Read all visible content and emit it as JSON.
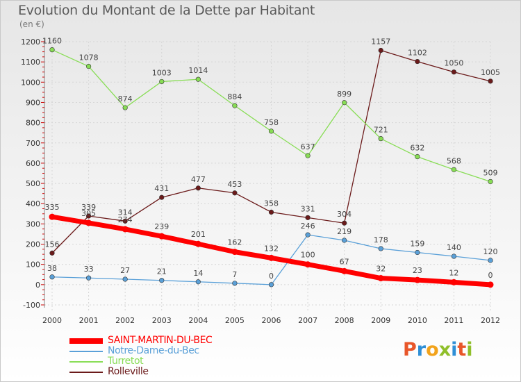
{
  "title": "Evolution du Montant de la Dette par Habitant",
  "subtitle": "(en €)",
  "logo": {
    "letters": [
      "P",
      "r",
      "o",
      "x",
      "i",
      "t",
      "i"
    ],
    "colors": [
      "#e8562a",
      "#2f8fd6",
      "#f2a31b",
      "#8fbf2a",
      "#2f8fd6",
      "#e8562a",
      "#8fbf2a"
    ]
  },
  "chart_data": {
    "type": "line",
    "title": "Evolution du Montant de la Dette par Habitant",
    "ylabel": "(en €)",
    "xlabel": "",
    "x": [
      "2000",
      "2001",
      "2002",
      "2003",
      "2004",
      "2005",
      "2006",
      "2007",
      "2008",
      "2009",
      "2010",
      "2011",
      "2012"
    ],
    "ylim": [
      -100,
      1200
    ],
    "yticks": [
      -100,
      0,
      100,
      200,
      300,
      400,
      500,
      600,
      700,
      800,
      900,
      1000,
      1100,
      1200
    ],
    "grid": true,
    "legend_position": "bottom-left",
    "series": [
      {
        "name": "Rolleville",
        "color": "#6b1a1a",
        "width": 1.3,
        "values": [
          156,
          339,
          314,
          431,
          477,
          453,
          358,
          331,
          304,
          1157,
          1102,
          1050,
          1005
        ]
      },
      {
        "name": "Turretot",
        "color": "#88dd55",
        "width": 1.3,
        "values": [
          1160,
          1078,
          874,
          1003,
          1014,
          884,
          758,
          637,
          899,
          721,
          632,
          568,
          509
        ]
      },
      {
        "name": "Notre-Dame-du-Bec",
        "color": "#5aa0d8",
        "width": 1.3,
        "values": [
          38,
          33,
          27,
          21,
          14,
          7,
          0,
          246,
          219,
          178,
          159,
          140,
          120
        ]
      },
      {
        "name": "SAINT-MARTIN-DU-BEC",
        "color": "#ff0000",
        "width": 7,
        "values": [
          335,
          305,
          274,
          239,
          201,
          162,
          132,
          100,
          67,
          32,
          23,
          12,
          0
        ]
      }
    ]
  },
  "legend": [
    {
      "label": "SAINT-MARTIN-DU-BEC",
      "color": "#ff0000",
      "thick": true
    },
    {
      "label": "Notre-Dame-du-Bec",
      "color": "#5aa0d8",
      "thick": false
    },
    {
      "label": "Turretot",
      "color": "#88dd55",
      "thick": false
    },
    {
      "label": "Rolleville",
      "color": "#6b1a1a",
      "thick": false
    }
  ]
}
